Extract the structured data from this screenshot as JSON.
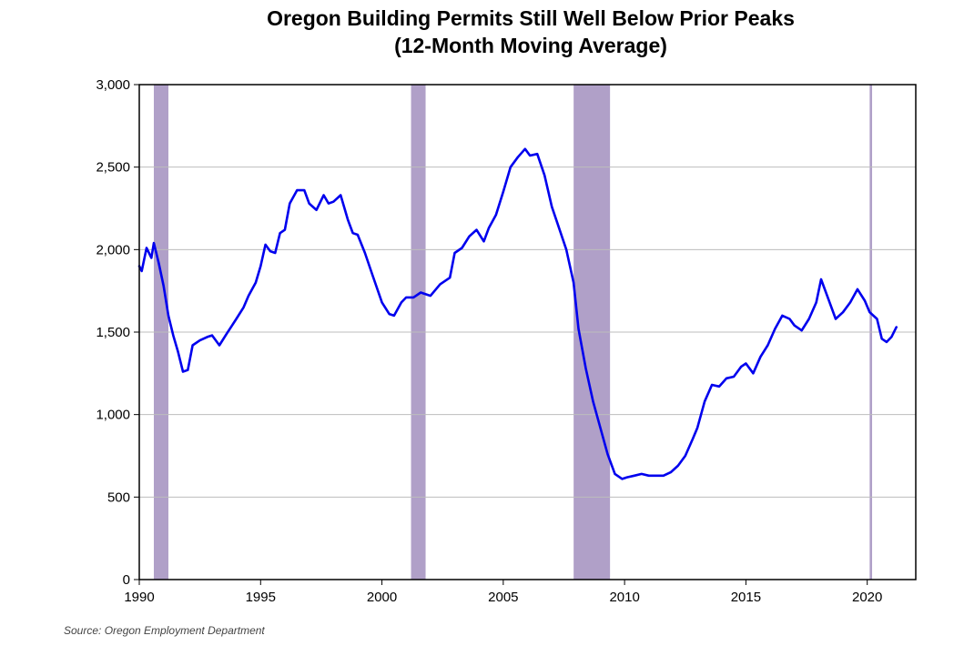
{
  "chart_data": {
    "type": "line",
    "title_lines": [
      "Oregon Building Permits Still Well Below Prior Peaks",
      "(12-Month Moving Average)"
    ],
    "xlabel": "",
    "ylabel": "",
    "xlim": [
      1990,
      2022
    ],
    "ylim": [
      0,
      3000
    ],
    "x_ticks": [
      1990,
      1995,
      2000,
      2005,
      2010,
      2015,
      2020
    ],
    "x_tick_labels": [
      "1990",
      "1995",
      "2000",
      "2005",
      "2010",
      "2015",
      "2020"
    ],
    "y_ticks": [
      0,
      500,
      1000,
      1500,
      2000,
      2500,
      3000
    ],
    "y_tick_labels": [
      "0",
      "500",
      "1,000",
      "1,500",
      "2,000",
      "2,500",
      "3,000"
    ],
    "grid": "horizontal",
    "legend": "none",
    "recessions": [
      {
        "start": 1990.6,
        "end": 1991.2
      },
      {
        "start": 2001.2,
        "end": 2001.8
      },
      {
        "start": 2007.9,
        "end": 2009.4
      },
      {
        "start": 2020.1,
        "end": 2020.2
      }
    ],
    "recession_color": "#b0a0c8",
    "line_color": "#0000ee",
    "series": [
      {
        "x": [
          1990.0,
          1990.1,
          1990.3,
          1990.5,
          1990.6,
          1990.8,
          1991.0,
          1991.2,
          1991.4,
          1991.6,
          1991.8,
          1992.0,
          1992.2,
          1992.5,
          1992.8,
          1993.0,
          1993.3,
          1993.6,
          1994.0,
          1994.3,
          1994.5,
          1994.8,
          1995.0,
          1995.2,
          1995.4,
          1995.6,
          1995.8,
          1996.0,
          1996.2,
          1996.5,
          1996.8,
          1997.0,
          1997.3,
          1997.6,
          1997.8,
          1998.0,
          1998.3,
          1998.6,
          1998.8,
          1999.0,
          1999.3,
          1999.6,
          2000.0,
          2000.3,
          2000.5,
          2000.8,
          2001.0,
          2001.3,
          2001.6,
          2002.0,
          2002.4,
          2002.8,
          2003.0,
          2003.3,
          2003.6,
          2003.9,
          2004.2,
          2004.4,
          2004.7,
          2005.0,
          2005.3,
          2005.6,
          2005.9,
          2006.1,
          2006.4,
          2006.7,
          2007.0,
          2007.3,
          2007.6,
          2007.9,
          2008.1,
          2008.4,
          2008.7,
          2009.0,
          2009.3,
          2009.6,
          2009.9,
          2010.1,
          2010.4,
          2010.7,
          2011.0,
          2011.3,
          2011.6,
          2011.9,
          2012.2,
          2012.5,
          2012.8,
          2013.0,
          2013.3,
          2013.6,
          2013.9,
          2014.2,
          2014.5,
          2014.8,
          2015.0,
          2015.3,
          2015.6,
          2015.9,
          2016.2,
          2016.5,
          2016.8,
          2017.0,
          2017.3,
          2017.6,
          2017.9,
          2018.1,
          2018.4,
          2018.7,
          2019.0,
          2019.3,
          2019.6,
          2019.9,
          2020.1,
          2020.4,
          2020.6,
          2020.8,
          2021.0,
          2021.2
        ],
        "values": [
          1900,
          1870,
          2010,
          1950,
          2040,
          1920,
          1780,
          1600,
          1480,
          1380,
          1260,
          1270,
          1420,
          1450,
          1470,
          1480,
          1420,
          1490,
          1580,
          1650,
          1720,
          1800,
          1900,
          2030,
          1990,
          1980,
          2100,
          2120,
          2280,
          2360,
          2360,
          2280,
          2240,
          2330,
          2280,
          2290,
          2330,
          2180,
          2100,
          2090,
          1980,
          1850,
          1680,
          1610,
          1600,
          1680,
          1710,
          1710,
          1740,
          1720,
          1790,
          1830,
          1980,
          2010,
          2080,
          2120,
          2050,
          2130,
          2210,
          2350,
          2500,
          2560,
          2610,
          2570,
          2580,
          2450,
          2260,
          2130,
          2000,
          1800,
          1520,
          1280,
          1080,
          920,
          760,
          640,
          610,
          620,
          630,
          640,
          630,
          630,
          630,
          650,
          690,
          750,
          850,
          920,
          1080,
          1180,
          1170,
          1220,
          1230,
          1290,
          1310,
          1250,
          1350,
          1420,
          1520,
          1600,
          1580,
          1540,
          1510,
          1580,
          1680,
          1820,
          1700,
          1580,
          1620,
          1680,
          1760,
          1690,
          1620,
          1580,
          1460,
          1440,
          1470,
          1530
        ]
      }
    ],
    "source": "Source: Oregon Employment Department"
  }
}
